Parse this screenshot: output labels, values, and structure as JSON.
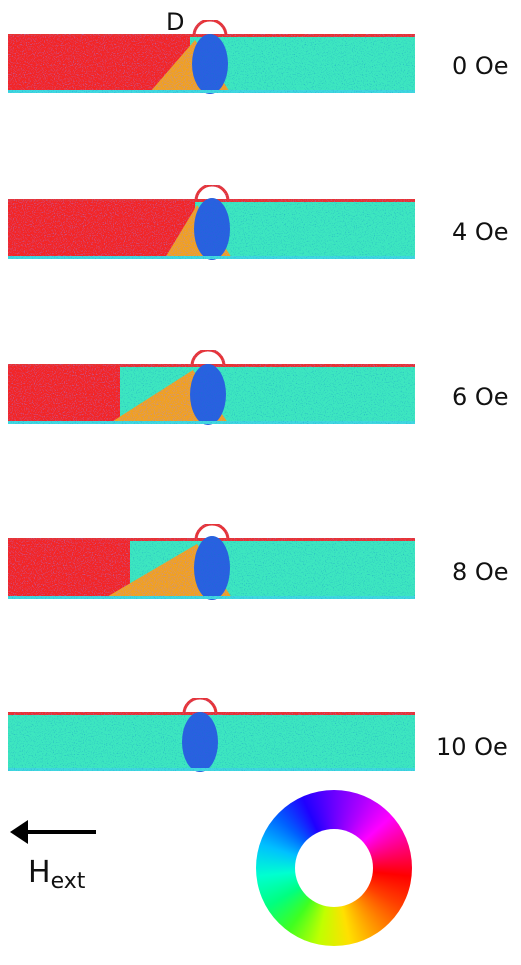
{
  "domain_marker": "D",
  "panels": [
    {
      "label": "0 Oe"
    },
    {
      "label": "4 Oe"
    },
    {
      "label": "6 Oe"
    },
    {
      "label": "8 Oe"
    },
    {
      "label": "10 Oe"
    }
  ],
  "field": {
    "symbol": "H",
    "subscript": "ext"
  }
}
